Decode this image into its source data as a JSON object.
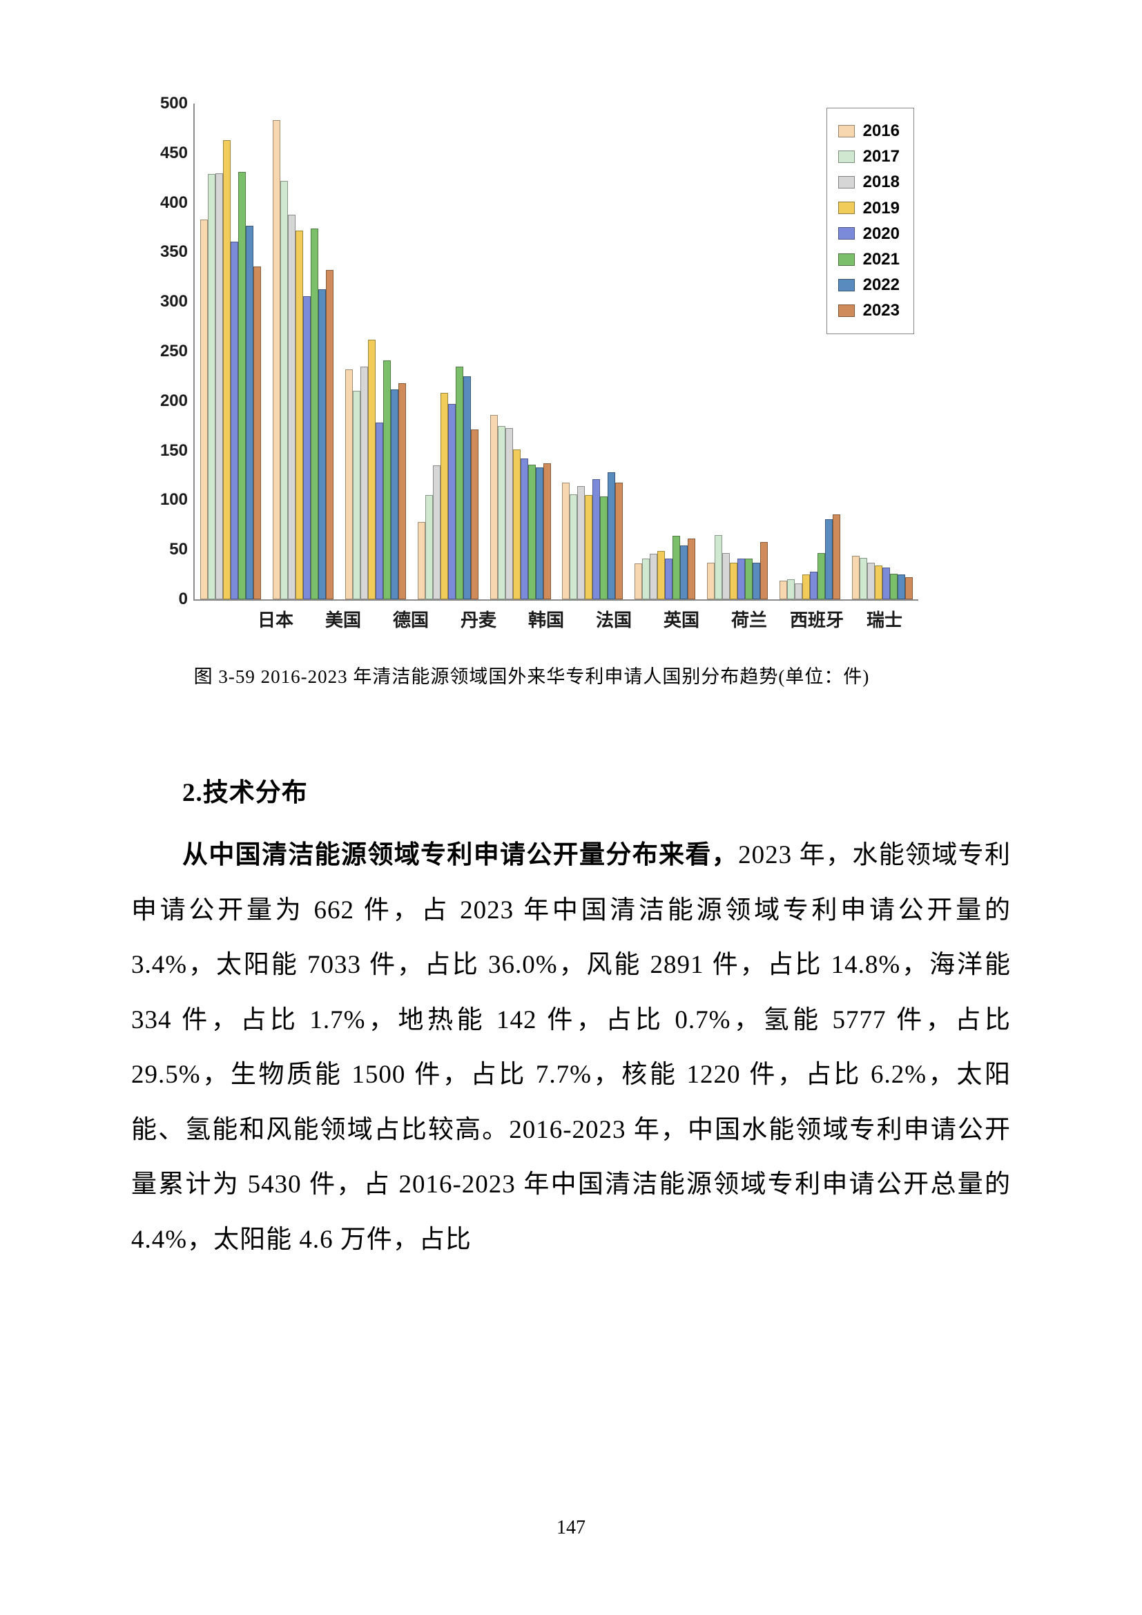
{
  "chart": {
    "type": "grouped-bar",
    "y_axis": {
      "min": 0,
      "max": 500,
      "step": 50
    },
    "categories": [
      "日本",
      "美国",
      "德国",
      "丹麦",
      "韩国",
      "法国",
      "英国",
      "荷兰",
      "西班牙",
      "瑞士"
    ],
    "series": [
      {
        "name": "2016",
        "color": "#f6d7b0",
        "values": [
          383,
          483,
          232,
          78,
          186,
          118,
          36,
          37,
          19,
          44
        ]
      },
      {
        "name": "2017",
        "color": "#cfe8cf",
        "values": [
          429,
          422,
          210,
          105,
          175,
          106,
          41,
          65,
          20,
          42
        ]
      },
      {
        "name": "2018",
        "color": "#d6d6d6",
        "values": [
          430,
          388,
          235,
          135,
          173,
          114,
          46,
          47,
          16,
          37
        ]
      },
      {
        "name": "2019",
        "color": "#f2cc5a",
        "values": [
          463,
          372,
          262,
          208,
          151,
          105,
          49,
          37,
          25,
          34
        ]
      },
      {
        "name": "2020",
        "color": "#7c8bd9",
        "values": [
          361,
          306,
          178,
          197,
          142,
          121,
          41,
          41,
          28,
          32
        ]
      },
      {
        "name": "2021",
        "color": "#7bbf6a",
        "values": [
          431,
          374,
          241,
          235,
          136,
          104,
          64,
          41,
          47,
          26
        ]
      },
      {
        "name": "2022",
        "color": "#5a8bbf",
        "values": [
          377,
          313,
          212,
          225,
          133,
          128,
          54,
          37,
          81,
          25
        ]
      },
      {
        "name": "2023",
        "color": "#d08b5a",
        "values": [
          336,
          332,
          218,
          171,
          137,
          118,
          61,
          58,
          86,
          22
        ]
      }
    ],
    "legend_title": null,
    "title_fontsize": 27,
    "axis_font": {
      "family": "Arial",
      "weight": "bold",
      "size": 24
    },
    "axis_color": "#8a8a8a",
    "background_color": "#ffffff",
    "caption": "图 3-59 2016-2023 年清洁能源领域国外来华专利申请人国别分布趋势(单位：件)"
  },
  "section_heading": "2.技术分布",
  "body_paragraph_lead": "从中国清洁能源领域专利申请公开量分布来看，",
  "body_paragraph_rest": "2023 年，水能领域专利申请公开量为 662 件，占 2023 年中国清洁能源领域专利申请公开量的 3.4%，太阳能 7033 件，占比 36.0%，风能 2891 件，占比 14.8%，海洋能 334 件，占比 1.7%，地热能 142 件，占比 0.7%，氢能 5777 件，占比 29.5%，生物质能 1500 件，占比 7.7%，核能 1220 件，占比 6.2%，太阳能、氢能和风能领域占比较高。2016-2023 年，中国水能领域专利申请公开量累计为 5430 件，占 2016-2023 年中国清洁能源领域专利申请公开总量的 4.4%，太阳能 4.6 万件，占比",
  "page_number": "147"
}
